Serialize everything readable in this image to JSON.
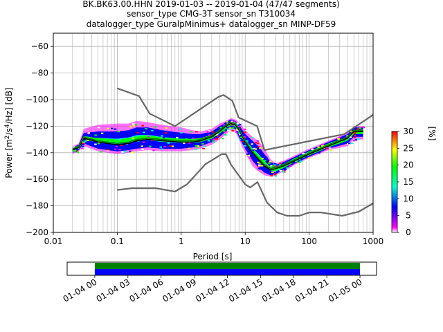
{
  "title": {
    "line1": "BK.BK63.00.HHN   2019-01-03 -- 2019-01-04  (47/47 segments)",
    "line2": "sensor_type CMG-3T sensor_sn T310034",
    "line3": "datalogger_type GuralpMinimus+ datalogger_sn MINP-DF59"
  },
  "chart_data": [
    {
      "type": "heatmap",
      "xlabel": "Period [s]",
      "ylabel": "Power [m²/s⁴/Hz] [dB]",
      "x_scale": "log",
      "xlim": [
        0.01,
        1000
      ],
      "ylim": [
        -200,
        -50
      ],
      "x_ticks": [
        0.01,
        0.1,
        1,
        10,
        100,
        1000
      ],
      "x_tick_labels": [
        "0.01",
        "0.1",
        "1",
        "10",
        "100",
        "1000"
      ],
      "y_ticks": [
        -200,
        -180,
        -160,
        -140,
        -120,
        -100,
        -80,
        -60
      ],
      "y_tick_labels": [
        "−200",
        "−180",
        "−160",
        "−140",
        "−120",
        "−100",
        "−80",
        "−60"
      ],
      "grid": true,
      "colorbar": {
        "label": "[%]",
        "range": [
          0,
          30
        ],
        "ticks": [
          0,
          5,
          10,
          15,
          20,
          25,
          30
        ],
        "tick_labels": [
          "0",
          "5",
          "10",
          "15",
          "20",
          "25",
          "30"
        ],
        "colors": [
          "#ffffff",
          "#ff00ff",
          "#0000ff",
          "#00ffcc",
          "#00ff00",
          "#ffff00",
          "#ff0000"
        ]
      },
      "series": [
        {
          "role": "noise-model-high",
          "color": "#666666",
          "x": [
            0.1,
            0.22,
            0.32,
            0.8,
            3.8,
            4.6,
            6.3,
            7.9,
            15.4,
            20,
            354.8,
            1000
          ],
          "y": [
            -91.5,
            -97.4,
            -110.5,
            -120,
            -98,
            -96.5,
            -101,
            -113.5,
            -120,
            -138,
            -126,
            -111.5
          ]
        },
        {
          "role": "noise-model-low",
          "color": "#666666",
          "x": [
            0.1,
            0.17,
            0.4,
            0.8,
            1.24,
            2.4,
            4.3,
            5,
            6,
            10,
            12,
            15.6,
            21.9,
            31.6,
            45,
            70,
            101,
            154,
            328,
            600,
            1000
          ],
          "y": [
            -168,
            -166.7,
            -166.7,
            -169.2,
            -163.7,
            -148.6,
            -141.1,
            -141,
            -149,
            -163.8,
            -166.2,
            -162.1,
            -177.5,
            -185,
            -187.5,
            -187.5,
            -185,
            -185,
            -187.5,
            -184.4,
            -178
          ]
        },
        {
          "role": "mean",
          "color": "#000000",
          "x": [
            0.02,
            0.025,
            0.03,
            0.05,
            0.1,
            0.15,
            0.2,
            0.3,
            0.5,
            1,
            1.5,
            2,
            3,
            4,
            5,
            6,
            7,
            8,
            10,
            13,
            16,
            20,
            25,
            30,
            40,
            60,
            100,
            200,
            400,
            500,
            700
          ],
          "y": [
            -138,
            -136,
            -129,
            -132,
            -134,
            -133,
            -131,
            -130,
            -131,
            -132,
            -132,
            -131,
            -128,
            -124,
            -120,
            -118,
            -119,
            -123,
            -132,
            -140,
            -145,
            -150,
            -153,
            -152,
            -150,
            -146,
            -141,
            -135,
            -129,
            -124,
            -124
          ]
        },
        {
          "role": "mode",
          "color": "#008000",
          "x": [
            0.02,
            0.025,
            0.03,
            0.05,
            0.1,
            0.15,
            0.2,
            0.3,
            0.5,
            1,
            1.5,
            2,
            3,
            4,
            5,
            6,
            7,
            8,
            10,
            13,
            16,
            20,
            25,
            30,
            40,
            60,
            100,
            200,
            400,
            500,
            700
          ],
          "y": [
            -137,
            -135,
            -128,
            -131,
            -133,
            -132,
            -130,
            -129,
            -130,
            -131,
            -131,
            -130,
            -127,
            -123,
            -119,
            -117,
            -118,
            -122,
            -131,
            -139,
            -144,
            -149,
            -152,
            -151,
            -149,
            -145,
            -140,
            -134,
            -128,
            -123,
            -123
          ]
        }
      ],
      "density_envelope": {
        "x": [
          0.02,
          0.025,
          0.03,
          0.05,
          0.1,
          0.15,
          0.2,
          0.3,
          0.5,
          1,
          1.5,
          2,
          3,
          4,
          5,
          6,
          7,
          8,
          10,
          13,
          16,
          20,
          25,
          30,
          40,
          60,
          100,
          200,
          400,
          500,
          700
        ],
        "upper": [
          -136,
          -134,
          -125,
          -124,
          -124,
          -123,
          -121,
          -121,
          -123,
          -125,
          -126,
          -126,
          -124,
          -120,
          -117,
          -115,
          -116,
          -119,
          -126,
          -131,
          -135,
          -141,
          -147,
          -149,
          -147,
          -143,
          -138,
          -132,
          -126,
          -121,
          -121
        ],
        "lower": [
          -140,
          -138,
          -133,
          -137,
          -139,
          -138,
          -137,
          -136,
          -137,
          -137,
          -136,
          -135,
          -132,
          -128,
          -124,
          -121,
          -122,
          -128,
          -137,
          -146,
          -151,
          -155,
          -157,
          -156,
          -153,
          -148,
          -143,
          -137,
          -133,
          -128,
          -128
        ],
        "outer_upper": [
          -135,
          -133,
          -122,
          -119,
          -118,
          -118,
          -116,
          -117,
          -119,
          -121,
          -123,
          -124,
          -122,
          -118,
          -116,
          -114,
          -115,
          -117,
          -123,
          -128,
          -131,
          -137,
          -145,
          -148,
          -146,
          -142,
          -137,
          -131,
          -125,
          -120,
          -120
        ],
        "outer_lower": [
          -141,
          -139,
          -135,
          -139,
          -141,
          -140,
          -139,
          -138,
          -139,
          -139,
          -138,
          -137,
          -134,
          -130,
          -126,
          -123,
          -124,
          -130,
          -140,
          -150,
          -154,
          -157,
          -158,
          -157,
          -154,
          -149,
          -144,
          -138,
          -135,
          -130,
          -130
        ]
      }
    },
    {
      "type": "timeline",
      "x_ticks": [
        "01-04 00",
        "01-04 03",
        "01-04 06",
        "01-04 09",
        "01-04 12",
        "01-04 15",
        "01-04 18",
        "01-04 21",
        "01-05 00"
      ],
      "range": [
        "01-03 21:30",
        "01-05 01:30"
      ],
      "coverage": [
        {
          "start": "01-04 00",
          "end": "01-05 00",
          "color": "#008000"
        },
        {
          "start": "01-04 00",
          "end": "01-05 00",
          "color": "#0000ff"
        }
      ]
    }
  ]
}
